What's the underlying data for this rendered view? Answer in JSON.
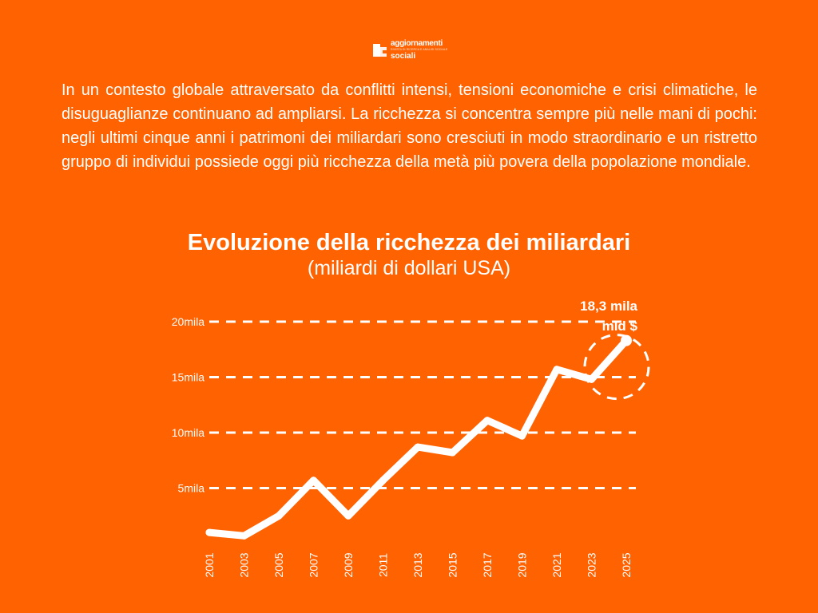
{
  "logo": {
    "line1": "aggiornamenti",
    "sub": "RIVISTA DI RICERCA E ANALISI SOCIALE",
    "line2": "sociali"
  },
  "intro_text": "In un contesto globale attraversato da conflitti intensi, tensioni economiche e crisi climatiche, le disuguaglianze continuano ad ampliarsi. La ricchezza si concentra sempre più nelle mani di pochi: negli ultimi cinque anni i patrimoni dei miliardari sono cresciuti in modo straordinario e un ristretto gruppo di individui possiede oggi più ricchezza della metà più povera della popolazione mondiale.",
  "chart_data": {
    "type": "line",
    "title": "Evoluzione della ricchezza dei miliardari",
    "subtitle": "(miliardi di dollari USA)",
    "x": [
      "2001",
      "2003",
      "2005",
      "2007",
      "2009",
      "2011",
      "2013",
      "2015",
      "2017",
      "2019",
      "2021",
      "2023",
      "2025"
    ],
    "values": [
      1000,
      700,
      2500,
      5700,
      2500,
      5700,
      8700,
      8200,
      11100,
      9700,
      15700,
      14800,
      18300
    ],
    "y_ticks": [
      {
        "value": 5000,
        "label": "5mila"
      },
      {
        "value": 10000,
        "label": "10mila"
      },
      {
        "value": 15000,
        "label": "15mila"
      },
      {
        "value": 20000,
        "label": "20mila"
      }
    ],
    "ylim": [
      0,
      20000
    ],
    "grid": true,
    "grid_style": "dashed",
    "callout": {
      "line1": "18,3 mila",
      "line2": "mld $",
      "target_index": 12
    }
  },
  "colors": {
    "background": "#FF6200",
    "line": "#FFFFFF"
  }
}
